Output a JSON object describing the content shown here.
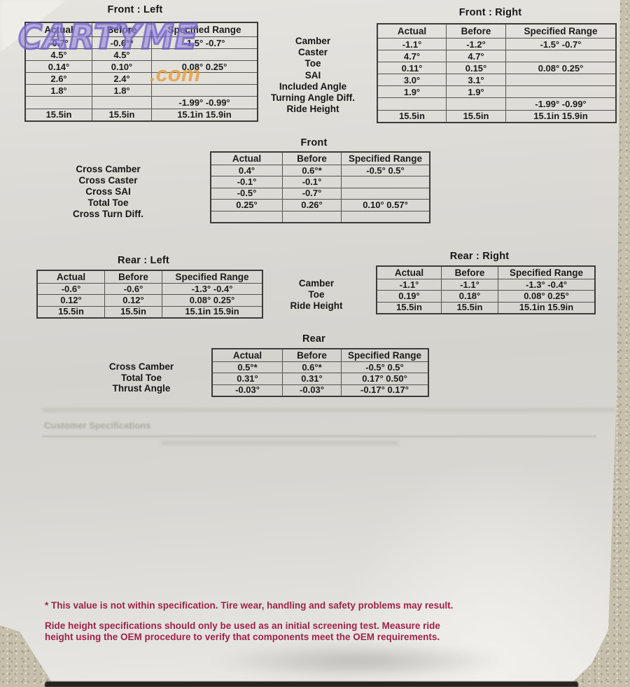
{
  "watermark": {
    "text": "CARTYME",
    "suffix": ".com"
  },
  "headers": [
    "Actual",
    "Before",
    "Specified Range"
  ],
  "sections": {
    "front_left": {
      "title": "Front : Left",
      "headers": [
        "Actual",
        "Before",
        "Specified Range"
      ],
      "rows": [
        [
          {
            "t": "-0.7°",
            "c": "green"
          },
          {
            "t": "-0.6°*",
            "c": "red"
          },
          {
            "t": "-1.5° -0.7°"
          }
        ],
        [
          {
            "t": "4.5°"
          },
          {
            "t": "4.5°"
          },
          {
            "t": ""
          }
        ],
        [
          {
            "t": "0.14°",
            "c": "green"
          },
          {
            "t": "0.10°",
            "c": "green"
          },
          {
            "t": "0.08° 0.25°"
          }
        ],
        [
          {
            "t": "2.6°"
          },
          {
            "t": "2.4°"
          },
          {
            "t": ""
          }
        ],
        [
          {
            "t": "1.8°"
          },
          {
            "t": "1.8°"
          },
          {
            "t": ""
          }
        ],
        [
          {
            "t": ""
          },
          {
            "t": ""
          },
          {
            "t": "-1.99° -0.99°"
          }
        ],
        [
          {
            "t": "15.5in",
            "c": "green"
          },
          {
            "t": "15.5in",
            "c": "green"
          },
          {
            "t": "15.1in 15.9in"
          }
        ]
      ]
    },
    "front_right": {
      "title": "Front : Right",
      "headers": [
        "Actual",
        "Before",
        "Specified Range"
      ],
      "rows": [
        [
          {
            "t": "-1.1°",
            "c": "green"
          },
          {
            "t": "-1.2°",
            "c": "green"
          },
          {
            "t": "-1.5° -0.7°"
          }
        ],
        [
          {
            "t": "4.7°"
          },
          {
            "t": "4.7°"
          },
          {
            "t": ""
          }
        ],
        [
          {
            "t": "0.11°",
            "c": "green"
          },
          {
            "t": "0.15°",
            "c": "green"
          },
          {
            "t": "0.08° 0.25°"
          }
        ],
        [
          {
            "t": "3.0°"
          },
          {
            "t": "3.1°"
          },
          {
            "t": ""
          }
        ],
        [
          {
            "t": "1.9°"
          },
          {
            "t": "1.9°"
          },
          {
            "t": ""
          }
        ],
        [
          {
            "t": ""
          },
          {
            "t": ""
          },
          {
            "t": "-1.99° -0.99°"
          }
        ],
        [
          {
            "t": "15.5in",
            "c": "green"
          },
          {
            "t": "15.5in",
            "c": "green"
          },
          {
            "t": "15.1in 15.9in"
          }
        ]
      ]
    },
    "front_row_labels": [
      "Camber",
      "Caster",
      "Toe",
      "SAI",
      "Included Angle",
      "Turning Angle Diff.",
      "Ride Height"
    ],
    "front_cross": {
      "title": "Front",
      "headers": [
        "Actual",
        "Before",
        "Specified Range"
      ],
      "labels": [
        "Cross Camber",
        "Cross Caster",
        "Cross SAI",
        "Total Toe",
        "Cross Turn Diff."
      ],
      "rows": [
        [
          {
            "t": "0.4°",
            "c": "green"
          },
          {
            "t": "0.6°*",
            "c": "red"
          },
          {
            "t": "-0.5° 0.5°"
          }
        ],
        [
          {
            "t": "-0.1°"
          },
          {
            "t": "-0.1°"
          },
          {
            "t": ""
          }
        ],
        [
          {
            "t": "-0.5°"
          },
          {
            "t": "-0.7°"
          },
          {
            "t": ""
          }
        ],
        [
          {
            "t": "0.25°",
            "c": "green"
          },
          {
            "t": "0.26°",
            "c": "green"
          },
          {
            "t": "0.10° 0.57°"
          }
        ],
        [
          {
            "t": ""
          },
          {
            "t": ""
          },
          {
            "t": ""
          }
        ]
      ]
    },
    "rear_left": {
      "title": "Rear : Left",
      "headers": [
        "Actual",
        "Before",
        "Specified Range"
      ],
      "rows": [
        [
          {
            "t": "-0.6°",
            "c": "green"
          },
          {
            "t": "-0.6°",
            "c": "green"
          },
          {
            "t": "-1.3° -0.4°"
          }
        ],
        [
          {
            "t": "0.12°",
            "c": "green"
          },
          {
            "t": "0.12°",
            "c": "green"
          },
          {
            "t": "0.08° 0.25°"
          }
        ],
        [
          {
            "t": "15.5in",
            "c": "green"
          },
          {
            "t": "15.5in",
            "c": "green"
          },
          {
            "t": "15.1in 15.9in"
          }
        ]
      ]
    },
    "rear_right": {
      "title": "Rear : Right",
      "headers": [
        "Actual",
        "Before",
        "Specified Range"
      ],
      "rows": [
        [
          {
            "t": "-1.1°",
            "c": "green"
          },
          {
            "t": "-1.1°",
            "c": "green"
          },
          {
            "t": "-1.3° -0.4°"
          }
        ],
        [
          {
            "t": "0.19°",
            "c": "green"
          },
          {
            "t": "0.18°",
            "c": "green"
          },
          {
            "t": "0.08° 0.25°"
          }
        ],
        [
          {
            "t": "15.5in",
            "c": "green"
          },
          {
            "t": "15.5in",
            "c": "green"
          },
          {
            "t": "15.1in 15.9in"
          }
        ]
      ]
    },
    "rear_row_labels": [
      "Camber",
      "Toe",
      "Ride Height"
    ],
    "rear_cross": {
      "title": "Rear",
      "headers": [
        "Actual",
        "Before",
        "Specified Range"
      ],
      "labels": [
        "Cross Camber",
        "Total Toe",
        "Thrust Angle"
      ],
      "rows": [
        [
          {
            "t": "0.5°*",
            "c": "red"
          },
          {
            "t": "0.6°*",
            "c": "red"
          },
          {
            "t": "-0.5° 0.5°"
          }
        ],
        [
          {
            "t": "0.31°",
            "c": "green"
          },
          {
            "t": "0.31°",
            "c": "green"
          },
          {
            "t": "0.17° 0.50°"
          }
        ],
        [
          {
            "t": "-0.03°",
            "c": "green"
          },
          {
            "t": "-0.03°",
            "c": "green"
          },
          {
            "t": "-0.17° 0.17°"
          }
        ]
      ]
    }
  },
  "ghost": {
    "heading": "Customer Specifications"
  },
  "footnotes": {
    "note1": "* This value is not within specification.  Tire wear, handling and safety problems may result.",
    "note2": "Ride height specifications should only be used as an initial screening test. Measure ride height using the OEM procedure to verify that components meet the OEM requirements."
  },
  "colors": {
    "in_spec": "#1d7044",
    "out_of_spec": "#c63050",
    "footnote": "#9d2348"
  }
}
